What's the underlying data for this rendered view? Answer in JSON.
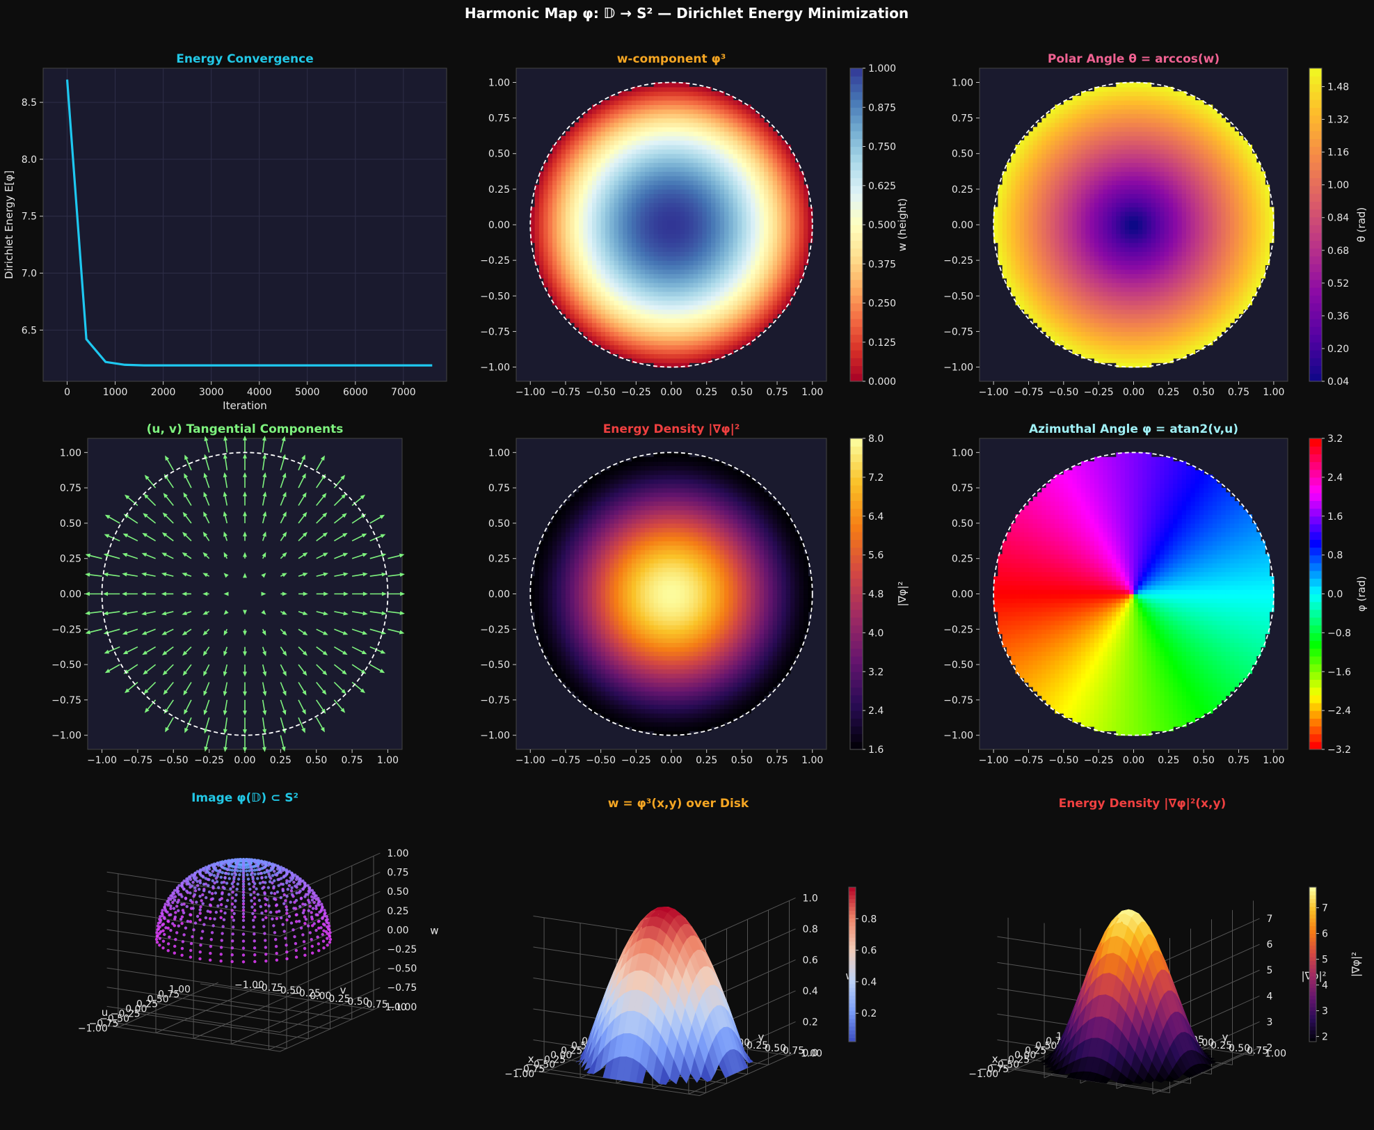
{
  "figure": {
    "suptitle": "Harmonic Map  φ: 𝔻 → S²   —   Dirichlet Energy Minimization",
    "background": "#0d0d0d",
    "panel_bg": "#1a1a2e",
    "grid": false
  },
  "chart_data": [
    {
      "id": "energy",
      "type": "line",
      "title": "Energy Convergence",
      "title_color": "#22c8e6",
      "xlabel": "Iteration",
      "ylabel": "Dirichlet Energy  E[φ]",
      "xlim": [
        -500,
        7900
      ],
      "ylim": [
        6.05,
        8.8
      ],
      "xticks": [
        0,
        1000,
        2000,
        3000,
        4000,
        5000,
        6000,
        7000
      ],
      "xticklabels": [
        "0",
        "1000",
        "2000",
        "3000",
        "4000",
        "5000",
        "6000",
        "7000"
      ],
      "yticks": [
        6.5,
        7.0,
        7.5,
        8.0,
        8.5
      ],
      "yticklabels": [
        "6.5",
        "7.0",
        "7.5",
        "8.0",
        "8.5"
      ],
      "grid": true,
      "series": [
        {
          "color": "#1ec8f0",
          "x": [
            0,
            400,
            800,
            1200,
            1600,
            2000,
            3000,
            4000,
            5000,
            6000,
            7000,
            7600
          ],
          "y": [
            8.7,
            6.42,
            6.22,
            6.195,
            6.19,
            6.19,
            6.19,
            6.19,
            6.19,
            6.19,
            6.19,
            6.19
          ]
        }
      ]
    },
    {
      "id": "wcomp",
      "type": "heatmap",
      "field": "w",
      "colormap": "RdYlBu",
      "title": "w-component  φ³",
      "title_color": "#f5a623",
      "xlim": [
        -1.1,
        1.1
      ],
      "ylim": [
        -1.1,
        1.1
      ],
      "xticklabels": [
        "−1.00",
        "−0.75",
        "−0.50",
        "−0.25",
        "0.00",
        "0.25",
        "0.50",
        "0.75",
        "1.00"
      ],
      "yticklabels": [
        "−1.00",
        "−0.75",
        "−0.50",
        "−0.25",
        "0.00",
        "0.25",
        "0.50",
        "0.75",
        "1.00"
      ],
      "colorbar": {
        "label": "w  (height)",
        "range": [
          0,
          1
        ],
        "ticks": [
          0,
          0.125,
          0.25,
          0.375,
          0.5,
          0.625,
          0.75,
          0.875,
          1.0
        ],
        "ticklabels": [
          "0.000",
          "0.125",
          "0.250",
          "0.375",
          "0.500",
          "0.625",
          "0.750",
          "0.875",
          "1.000"
        ]
      }
    },
    {
      "id": "theta",
      "type": "heatmap",
      "field": "theta",
      "colormap": "plasma",
      "title": "Polar Angle  θ = arccos(w)",
      "title_color": "#f06292",
      "xlim": [
        -1.1,
        1.1
      ],
      "ylim": [
        -1.1,
        1.1
      ],
      "xticklabels": [
        "−1.00",
        "−0.75",
        "−0.50",
        "−0.25",
        "0.00",
        "0.25",
        "0.50",
        "0.75",
        "1.00"
      ],
      "yticklabels": [
        "−1.00",
        "−0.75",
        "−0.50",
        "−0.25",
        "0.00",
        "0.25",
        "0.50",
        "0.75",
        "1.00"
      ],
      "colorbar": {
        "label": "θ  (rad)",
        "range": [
          0.04,
          1.57
        ],
        "ticks": [
          0.04,
          0.2,
          0.36,
          0.52,
          0.68,
          0.84,
          1.0,
          1.16,
          1.32,
          1.48
        ],
        "ticklabels": [
          "0.04",
          "0.20",
          "0.36",
          "0.52",
          "0.68",
          "0.84",
          "1.00",
          "1.16",
          "1.32",
          "1.48"
        ]
      }
    },
    {
      "id": "quiver",
      "type": "quiver",
      "title": "(u, v) Tangential Components",
      "title_color": "#7ef27e",
      "arrow_color": "#7ef27e",
      "xlim": [
        -1.1,
        1.1
      ],
      "ylim": [
        -1.1,
        1.1
      ],
      "xticklabels": [
        "−1.00",
        "−0.75",
        "−0.50",
        "−0.25",
        "0.00",
        "0.25",
        "0.50",
        "0.75",
        "1.00"
      ],
      "yticklabels": [
        "−1.00",
        "−0.75",
        "−0.50",
        "−0.25",
        "0.00",
        "0.25",
        "0.50",
        "0.75",
        "1.00"
      ]
    },
    {
      "id": "edens",
      "type": "heatmap",
      "field": "energy",
      "colormap": "inferno",
      "title": "Energy Density  |∇φ|²",
      "title_color": "#ef4040",
      "xlim": [
        -1.1,
        1.1
      ],
      "ylim": [
        -1.1,
        1.1
      ],
      "xticklabels": [
        "−1.00",
        "−0.75",
        "−0.50",
        "−0.25",
        "0.00",
        "0.25",
        "0.50",
        "0.75",
        "1.00"
      ],
      "yticklabels": [
        "−1.00",
        "−0.75",
        "−0.50",
        "−0.25",
        "0.00",
        "0.25",
        "0.50",
        "0.75",
        "1.00"
      ],
      "colorbar": {
        "label": "|∇φ|²",
        "range": [
          1.6,
          8.0
        ],
        "ticks": [
          1.6,
          2.4,
          3.2,
          4.0,
          4.8,
          5.6,
          6.4,
          7.2,
          8.0
        ],
        "ticklabels": [
          "1.6",
          "2.4",
          "3.2",
          "4.0",
          "4.8",
          "5.6",
          "6.4",
          "7.2",
          "8.0"
        ]
      }
    },
    {
      "id": "azim",
      "type": "heatmap",
      "field": "phi",
      "colormap": "hsv",
      "title": "Azimuthal Angle  φ = atan2(v,u)",
      "title_color": "#9ff0f5",
      "xlim": [
        -1.1,
        1.1
      ],
      "ylim": [
        -1.1,
        1.1
      ],
      "xticklabels": [
        "−1.00",
        "−0.75",
        "−0.50",
        "−0.25",
        "0.00",
        "0.25",
        "0.50",
        "0.75",
        "1.00"
      ],
      "yticklabels": [
        "−1.00",
        "−0.75",
        "−0.50",
        "−0.25",
        "0.00",
        "0.25",
        "0.50",
        "0.75",
        "1.00"
      ],
      "colorbar": {
        "label": "φ  (rad)",
        "range": [
          -3.2,
          3.2
        ],
        "ticks": [
          -3.2,
          -2.4,
          -1.6,
          -0.8,
          0.0,
          0.8,
          1.6,
          2.4,
          3.2
        ],
        "ticklabels": [
          "−3.2",
          "−2.4",
          "−1.6",
          "−0.8",
          "0.0",
          "0.8",
          "1.6",
          "2.4",
          "3.2"
        ]
      }
    },
    {
      "id": "sphere3d",
      "type": "scatter",
      "title": "Image φ(𝔻) ⊂ S²",
      "title_color": "#22c8e6",
      "xlabel": "u",
      "ylabel": "v",
      "zlabel": "w",
      "zticklabels": [
        "−1.00",
        "−0.75",
        "−0.50",
        "−0.25",
        "0.00",
        "0.25",
        "0.50",
        "0.75",
        "1.00"
      ],
      "xticklabels": [
        "−1.00",
        "−0.75",
        "−0.50",
        "−0.25",
        "0.00",
        "0.25",
        "0.50",
        "0.75",
        "1.00"
      ],
      "yticklabels": [
        "−1.00",
        "−0.75",
        "−0.50",
        "−0.25",
        "0.00",
        "0.25",
        "0.50",
        "0.75",
        "1.00"
      ]
    },
    {
      "id": "wsurf",
      "type": "area",
      "title": "w = φ³(x,y)  over Disk",
      "title_color": "#f5a623",
      "xlabel": "x",
      "ylabel": "y",
      "zlabel": "w",
      "zticklabels": [
        "0.0",
        "0.2",
        "0.4",
        "0.6",
        "0.8",
        "1.0"
      ],
      "xticklabels": [
        "−1.00",
        "−0.75",
        "−0.50",
        "−0.25",
        "0.00",
        "0.25",
        "0.50",
        "0.75",
        "1.00"
      ],
      "yticklabels": [
        "−1.00",
        "−0.75",
        "−0.50",
        "−0.25",
        "0.00",
        "0.25",
        "0.50",
        "0.75",
        "1.00"
      ],
      "colorbar": {
        "range": [
          0.02,
          1.0
        ],
        "ticks": [
          0.2,
          0.4,
          0.6,
          0.8
        ],
        "ticklabels": [
          "0.2",
          "0.4",
          "0.6",
          "0.8"
        ]
      }
    },
    {
      "id": "esurf",
      "type": "area",
      "title": "Energy Density  |∇φ|²(x,y)",
      "title_color": "#ef4040",
      "xlabel": "x",
      "ylabel": "y",
      "zlabel": "|∇φ|²",
      "zticklabels": [
        "2",
        "3",
        "4",
        "5",
        "6",
        "7"
      ],
      "xticklabels": [
        "−1.00",
        "−0.75",
        "−0.50",
        "−0.25",
        "0.00",
        "0.25",
        "0.50",
        "0.75",
        "1.00"
      ],
      "yticklabels": [
        "−1.00",
        "−0.75",
        "−0.50",
        "−0.25",
        "0.00",
        "0.25",
        "0.50",
        "0.75",
        "1.00"
      ],
      "colorbar": {
        "label": "|∇φ|²",
        "range": [
          1.8,
          7.8
        ],
        "ticks": [
          2,
          3,
          4,
          5,
          6,
          7
        ],
        "ticklabels": [
          "2",
          "3",
          "4",
          "5",
          "6",
          "7"
        ]
      }
    }
  ]
}
